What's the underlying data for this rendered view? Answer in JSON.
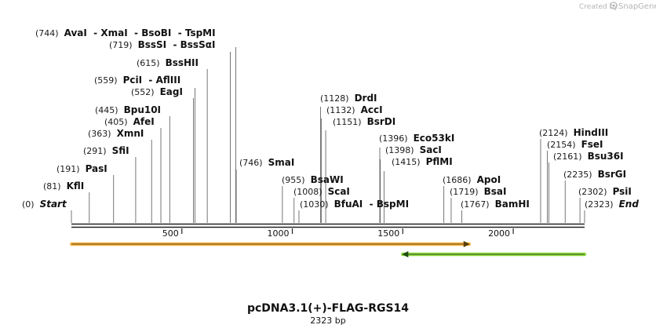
{
  "branding": {
    "created_by": "Created by",
    "app_name": "SnapGene"
  },
  "plasmid": {
    "name": "pcDNA3.1(+)-FLAG-RGS14",
    "length_label": "2323 bp",
    "length": 2323
  },
  "ruler": {
    "ticks": [
      500,
      1000,
      1500,
      2000
    ]
  },
  "colors": {
    "feature_forward": "#f5a623",
    "feature_reverse": "#7ed321",
    "line": "#222222"
  },
  "features": [
    {
      "start": 1,
      "end": 1800,
      "direction": "forward",
      "color": "#f5a623"
    },
    {
      "start": 1500,
      "end": 2323,
      "direction": "reverse",
      "color": "#7ed321"
    }
  ],
  "sites": [
    {
      "pos": 744,
      "pos_label": "(744)",
      "names": [
        "AvaI",
        "XmaI",
        "BsoBI",
        "TspMI"
      ]
    },
    {
      "pos": 719,
      "pos_label": "(719)",
      "names": [
        "BssSI",
        "BssSαI"
      ]
    },
    {
      "pos": 615,
      "pos_label": "(615)",
      "names": [
        "BssHII"
      ]
    },
    {
      "pos": 559,
      "pos_label": "(559)",
      "names": [
        "PciI",
        "AflIII"
      ]
    },
    {
      "pos": 552,
      "pos_label": "(552)",
      "names": [
        "EagI"
      ]
    },
    {
      "pos": 445,
      "pos_label": "(445)",
      "names": [
        "Bpu10I"
      ]
    },
    {
      "pos": 405,
      "pos_label": "(405)",
      "names": [
        "AfeI"
      ]
    },
    {
      "pos": 363,
      "pos_label": "(363)",
      "names": [
        "XmnI"
      ]
    },
    {
      "pos": 291,
      "pos_label": "(291)",
      "names": [
        "SfiI"
      ]
    },
    {
      "pos": 191,
      "pos_label": "(191)",
      "names": [
        "PasI"
      ]
    },
    {
      "pos": 81,
      "pos_label": "(81)",
      "names": [
        "KflI"
      ]
    },
    {
      "pos": 0,
      "pos_label": "(0)",
      "names": [
        "Start"
      ],
      "terminal": true
    },
    {
      "pos": 746,
      "pos_label": "(746)",
      "names": [
        "SmaI"
      ]
    },
    {
      "pos": 955,
      "pos_label": "(955)",
      "names": [
        "BsaWI"
      ]
    },
    {
      "pos": 1008,
      "pos_label": "(1008)",
      "names": [
        "ScaI"
      ]
    },
    {
      "pos": 1030,
      "pos_label": "(1030)",
      "names": [
        "BfuAI",
        "BspMI"
      ]
    },
    {
      "pos": 1128,
      "pos_label": "(1128)",
      "names": [
        "DrdI"
      ]
    },
    {
      "pos": 1132,
      "pos_label": "(1132)",
      "names": [
        "AccI"
      ]
    },
    {
      "pos": 1151,
      "pos_label": "(1151)",
      "names": [
        "BsrDI"
      ]
    },
    {
      "pos": 1396,
      "pos_label": "(1396)",
      "names": [
        "Eco53kI"
      ]
    },
    {
      "pos": 1398,
      "pos_label": "(1398)",
      "names": [
        "SacI"
      ]
    },
    {
      "pos": 1415,
      "pos_label": "(1415)",
      "names": [
        "PflMI"
      ]
    },
    {
      "pos": 1686,
      "pos_label": "(1686)",
      "names": [
        "ApoI"
      ]
    },
    {
      "pos": 1719,
      "pos_label": "(1719)",
      "names": [
        "BsaI"
      ]
    },
    {
      "pos": 1767,
      "pos_label": "(1767)",
      "names": [
        "BamHI"
      ]
    },
    {
      "pos": 2124,
      "pos_label": "(2124)",
      "names": [
        "HindIII"
      ]
    },
    {
      "pos": 2154,
      "pos_label": "(2154)",
      "names": [
        "FseI"
      ]
    },
    {
      "pos": 2161,
      "pos_label": "(2161)",
      "names": [
        "Bsu36I"
      ]
    },
    {
      "pos": 2235,
      "pos_label": "(2235)",
      "names": [
        "BsrGI"
      ]
    },
    {
      "pos": 2302,
      "pos_label": "(2302)",
      "names": [
        "PsiI"
      ]
    },
    {
      "pos": 2323,
      "pos_label": "(2323)",
      "names": [
        "End"
      ],
      "terminal": true
    }
  ]
}
